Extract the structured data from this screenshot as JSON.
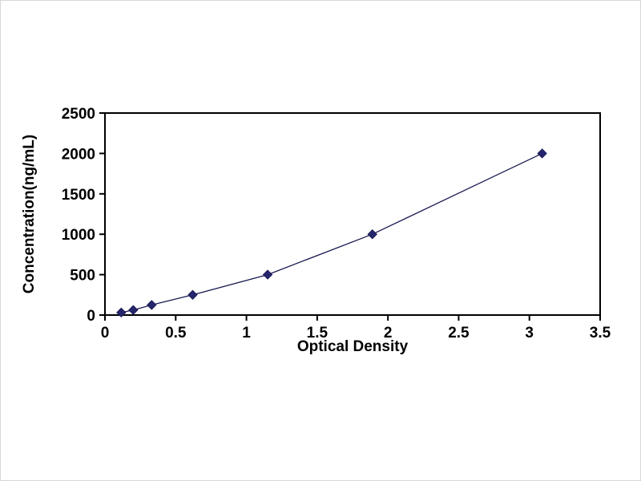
{
  "chart_data": {
    "type": "line",
    "title": "",
    "xlabel": "Optical Density",
    "ylabel": "Concentration(ng/mL)",
    "x": [
      0.115,
      0.2,
      0.33,
      0.62,
      1.15,
      1.89,
      3.09
    ],
    "y": [
      31.25,
      62.5,
      125,
      250,
      500,
      1000,
      2000
    ],
    "xlim": [
      0,
      3.5
    ],
    "ylim": [
      0,
      2500
    ],
    "xticks": [
      0,
      0.5,
      1,
      1.5,
      2,
      2.5,
      3,
      3.5
    ],
    "xtick_labels": [
      "0",
      "0.5",
      "1",
      "1.5",
      "2",
      "2.5",
      "3",
      "3.5"
    ],
    "yticks": [
      0,
      500,
      1000,
      1500,
      2000,
      2500
    ],
    "ytick_labels": [
      "0",
      "500",
      "1000",
      "1500",
      "2000",
      "2500"
    ],
    "grid": false,
    "legend": "none",
    "line_color": "#1a1a52",
    "marker": "diamond",
    "marker_color": "#26266e",
    "axis_color": "#000000"
  }
}
